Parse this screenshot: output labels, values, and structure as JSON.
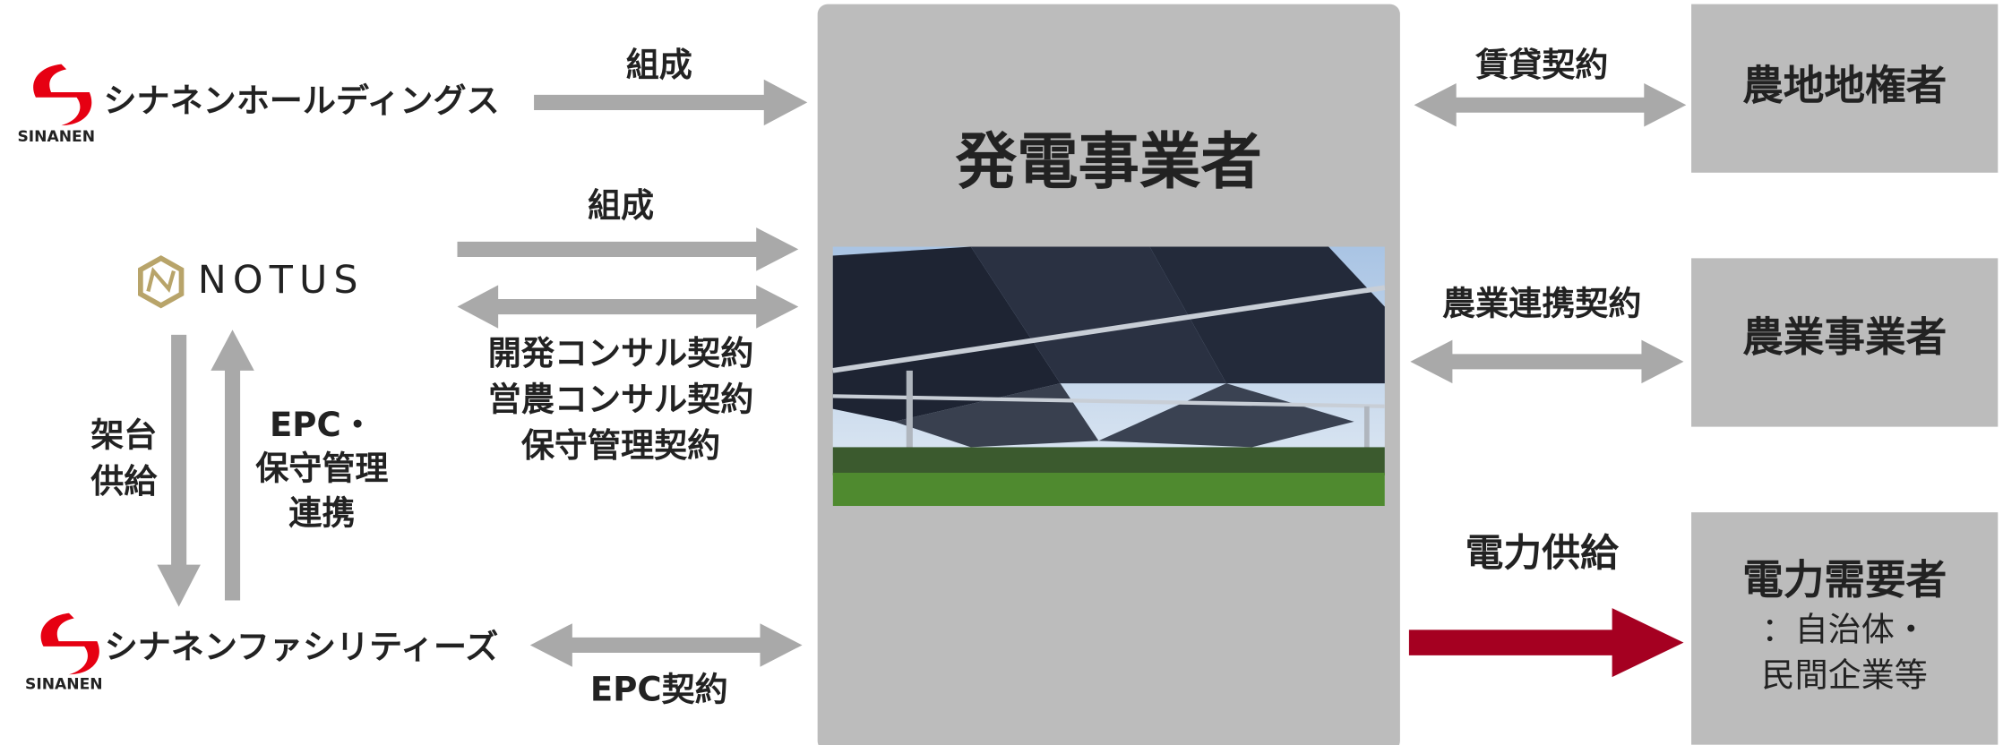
{
  "logos": [
    {
      "name": "シナネンホールディングス",
      "mark": "SINANEN"
    },
    {
      "name": "NOTUS"
    },
    {
      "name": "シナネンファシリティーズ",
      "mark": "SINANEN"
    }
  ],
  "center": {
    "label": "発電事業者"
  },
  "edges": [
    {
      "label": [
        "組成"
      ]
    },
    {
      "label": [
        "組成"
      ]
    },
    {
      "label": [
        "開発コンサル契約",
        "営農コンサル契約",
        "保守管理契約"
      ]
    },
    {
      "label": [
        "架台",
        "供給"
      ]
    },
    {
      "label": [
        "EPC・",
        "保守管理",
        "連携"
      ]
    },
    {
      "label": [
        "EPC契約"
      ]
    },
    {
      "label": [
        "賃貸契約"
      ]
    },
    {
      "label": [
        "農業連携契約"
      ]
    },
    {
      "label": [
        "電力供給"
      ]
    }
  ],
  "parties": [
    {
      "label": [
        "農地地権者"
      ]
    },
    {
      "label": [
        "農業事業者"
      ]
    },
    {
      "label": [
        "電力需要者",
        "：自治体・",
        "民間企業等"
      ]
    }
  ]
}
